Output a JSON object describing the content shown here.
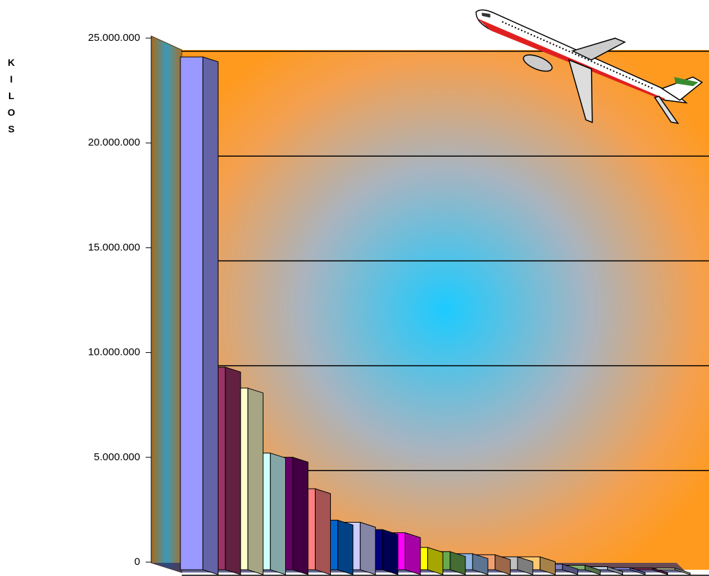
{
  "chart_data": {
    "type": "bar3d",
    "y_label": "KILOS",
    "categories": [
      null,
      null,
      null,
      null,
      null,
      null,
      null,
      null,
      null,
      null,
      null,
      null,
      null,
      null,
      null,
      null,
      null,
      null,
      null,
      null,
      null,
      null
    ],
    "values": [
      24400000,
      9600000,
      8600000,
      5500000,
      5300000,
      3800000,
      2300000,
      2200000,
      1850000,
      1700000,
      1000000,
      800000,
      700000,
      650000,
      550000,
      550000,
      200000,
      150000,
      80000,
      30000,
      20000,
      10000
    ],
    "colors": [
      "#9999ff",
      "#993366",
      "#ffffcc",
      "#ccffff",
      "#660066",
      "#ff8080",
      "#0066cc",
      "#ccccff",
      "#000080",
      "#ff00ff",
      "#ffff00",
      "#6aa84f",
      "#8db4e2",
      "#f0a070",
      "#c0c0c0",
      "#ffc870",
      "#8080c0",
      "#80b070",
      "#c0d0e0",
      "#9999ff",
      "#993366",
      "#ffffcc"
    ],
    "ylim": [
      0,
      25000000
    ],
    "yticks": [
      0,
      {
        "value": 5000000,
        "label": "5.000.000"
      },
      {
        "value": 10000000,
        "label": "10.000.000"
      },
      {
        "value": 15000000,
        "label": "15.000.000"
      },
      {
        "value": 20000000,
        "label": "20.000.000"
      },
      {
        "value": 25000000,
        "label": "25.000.000"
      }
    ],
    "grid": true
  }
}
